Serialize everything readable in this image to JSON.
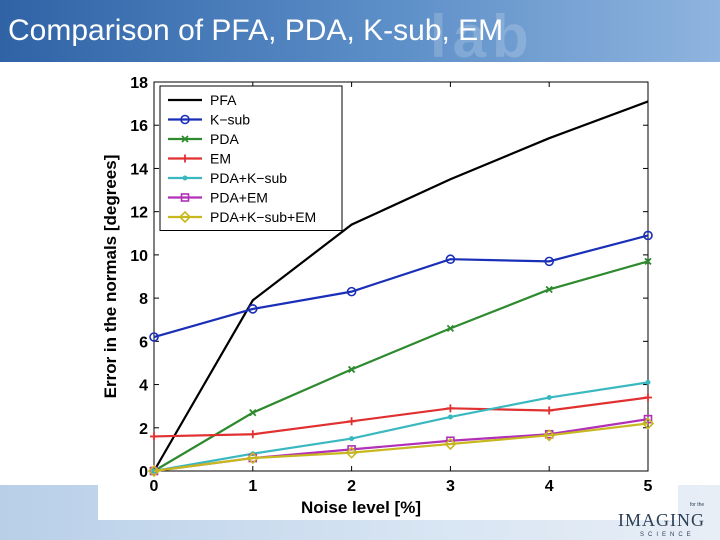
{
  "slide": {
    "title": "Comparison of PFA, PDA, K-sub, EM",
    "logo_main": "IMAGING",
    "logo_sub": "SCIENCE",
    "logo_top": "for the",
    "colors": {
      "header": "#3a6fb3",
      "text": "#ffffff"
    }
  },
  "chart_data": {
    "type": "line",
    "xlabel": "Noise level [%]",
    "ylabel": "Error in the normals [degrees]",
    "x": [
      0,
      1,
      2,
      3,
      4,
      5
    ],
    "xlim": [
      0,
      5
    ],
    "ylim": [
      0,
      18
    ],
    "xticks": [
      "0",
      "1",
      "2",
      "3",
      "4",
      "5"
    ],
    "yticks": [
      "0",
      "2",
      "4",
      "6",
      "8",
      "10",
      "12",
      "14",
      "16",
      "18"
    ],
    "grid": false,
    "legend_position": "top-left",
    "series": [
      {
        "name": "PFA",
        "color": "#000000",
        "marker": "none",
        "values": [
          0,
          7.9,
          11.4,
          13.5,
          15.4,
          17.1
        ]
      },
      {
        "name": "K−sub",
        "color": "#1a2fb8",
        "marker": "circle",
        "values": [
          6.2,
          7.5,
          8.3,
          9.8,
          9.7,
          10.9
        ]
      },
      {
        "name": "PDA",
        "color": "#2e8a2e",
        "marker": "x",
        "values": [
          0,
          2.7,
          4.7,
          6.6,
          8.4,
          9.7
        ]
      },
      {
        "name": "EM",
        "color": "#e03030",
        "marker": "plus",
        "values": [
          1.6,
          1.7,
          2.3,
          2.9,
          2.8,
          3.4
        ]
      },
      {
        "name": "PDA+K−sub",
        "color": "#3ab8c0",
        "marker": "dot",
        "values": [
          0,
          0.8,
          1.5,
          2.5,
          3.4,
          4.1
        ]
      },
      {
        "name": "PDA+EM",
        "color": "#b030b8",
        "marker": "square",
        "values": [
          0,
          0.6,
          1.0,
          1.4,
          1.7,
          2.4
        ]
      },
      {
        "name": "PDA+K−sub+EM",
        "color": "#c8b820",
        "marker": "diamond",
        "values": [
          0,
          0.6,
          0.85,
          1.25,
          1.65,
          2.2
        ]
      }
    ]
  }
}
